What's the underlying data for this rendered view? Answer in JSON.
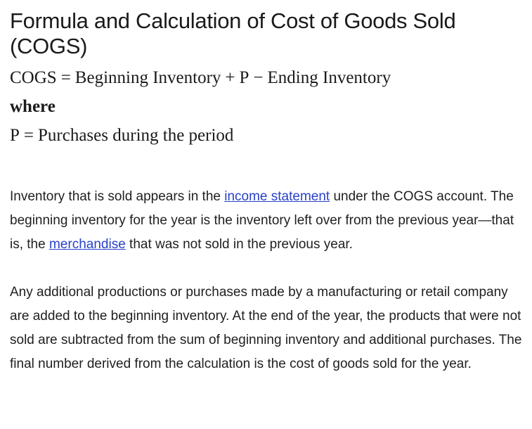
{
  "heading": "Formula and Calculation of Cost of Goods Sold (COGS)",
  "formula": {
    "lhs": "COGS",
    "eq": "=",
    "term1": "Beginning Inventory",
    "plus": "+",
    "term2": "P",
    "minus": "−",
    "term3": "Ending Inventory",
    "where": "where",
    "def_lhs": "P",
    "def_rhs": "Purchases during the period"
  },
  "paragraph1": {
    "part1": "Inventory that is sold appears in the ",
    "link1": "income statement",
    "part2": " under the COGS account. The beginning inventory for the year is the inventory left over from the previous year—that is, the ",
    "link2": "merchandise",
    "part3": " that was not sold in the previous year."
  },
  "paragraph2": "Any additional productions or purchases made by a manufacturing or retail company are added to the beginning inventory. At the end of the year, the products that were not sold are subtracted from the sum of beginning inventory and additional purchases. The final number derived from the calculation is the cost of goods sold for the year.",
  "colors": {
    "link": "#2941c9",
    "text": "#1a1a1a"
  }
}
